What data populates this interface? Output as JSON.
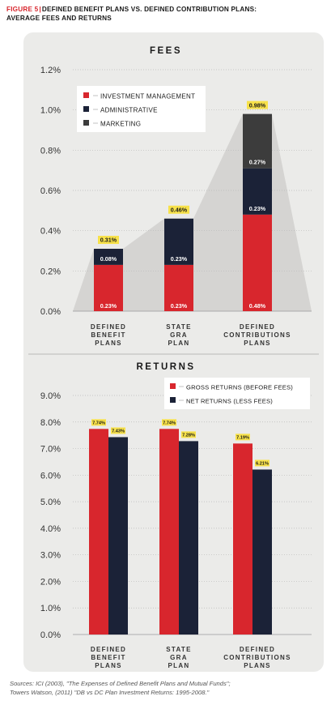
{
  "header": {
    "figure_label": "FIGURE 5",
    "title_line1": "DEFINED BENEFIT PLANS VS. DEFINED CONTRIBUTION PLANS:",
    "title_line2": "AVERAGE FEES AND RETURNS"
  },
  "colors": {
    "red": "#d8262d",
    "navy": "#1b2237",
    "dark_gray": "#3c3c3c",
    "label_yellow": "#f7e14a",
    "area_gray": "#d5d4d2",
    "panel": "#ebebe9"
  },
  "chart_data": [
    {
      "type": "bar",
      "stacked": true,
      "title": "FEES",
      "categories": [
        [
          "DEFINED",
          "BENEFIT",
          "PLANS"
        ],
        [
          "STATE",
          "GRA",
          "PLAN"
        ],
        [
          "DEFINED",
          "CONTRIBUTIONS",
          "PLANS"
        ]
      ],
      "series": [
        {
          "name": "INVESTMENT MANAGEMENT",
          "color": "#d8262d",
          "values": [
            0.23,
            0.23,
            0.48
          ],
          "labels": [
            "0.23%",
            "0.23%",
            "0.48%"
          ]
        },
        {
          "name": "ADMINISTRATIVE",
          "color": "#1b2237",
          "values": [
            0.08,
            0.23,
            0.23
          ],
          "labels": [
            "0.08%",
            "0.23%",
            "0.23%"
          ]
        },
        {
          "name": "MARKETING",
          "color": "#3c3c3c",
          "values": [
            0,
            0,
            0.27
          ],
          "labels": [
            "",
            "",
            "0.27%"
          ]
        }
      ],
      "totals": [
        0.31,
        0.46,
        0.98
      ],
      "total_labels": [
        "0.31%",
        "0.46%",
        "0.98%"
      ],
      "yticks": [
        "0.0%",
        "0.2%",
        "0.4%",
        "0.6%",
        "0.8%",
        "1.0%",
        "1.2%"
      ],
      "ylim": [
        0,
        1.2
      ],
      "legend_position": "top-left",
      "background_area": true
    },
    {
      "type": "bar",
      "title": "RETURNS",
      "categories": [
        [
          "DEFINED",
          "BENEFIT",
          "PLANS"
        ],
        [
          "STATE",
          "GRA",
          "PLAN"
        ],
        [
          "DEFINED",
          "CONTRIBUTIONS",
          "PLANS"
        ]
      ],
      "series": [
        {
          "name": "GROSS RETURNS (BEFORE FEES)",
          "color": "#d8262d",
          "values": [
            7.74,
            7.74,
            7.19
          ],
          "labels": [
            "7.74%",
            "7.74%",
            "7.19%"
          ]
        },
        {
          "name": "NET RETURNS (LESS FEES)",
          "color": "#1b2237",
          "values": [
            7.43,
            7.28,
            6.21
          ],
          "labels": [
            "7.43%",
            "7.28%",
            "6.21%"
          ]
        }
      ],
      "yticks": [
        "0.0%",
        "1.0%",
        "2.0%",
        "3.0%",
        "4.0%",
        "5.0%",
        "6.0%",
        "7.0%",
        "8.0%",
        "9.0%"
      ],
      "ylim": [
        0,
        9
      ],
      "legend_position": "top-right"
    }
  ],
  "sources": {
    "line1": "Sources: ICI (2003), \"The Expenses of Defined Benefit Plans and Mutual Funds\";",
    "line2": "Towers Watson, (2011) \"DB vs DC Plan Investment Returns: 1995-2008.\""
  }
}
